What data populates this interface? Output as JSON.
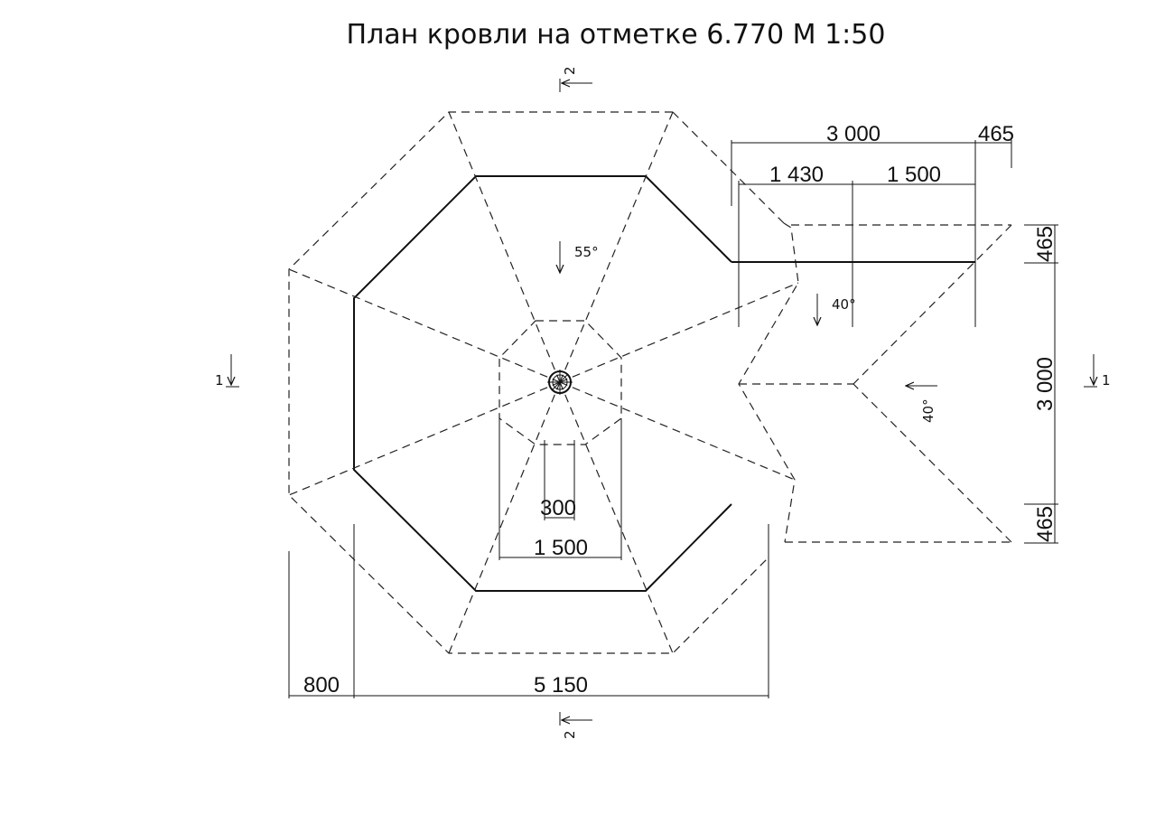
{
  "title": "План кровли  на отметке 6.770 М 1:50",
  "dimensions": {
    "top_total": "3 000",
    "top_right": "465",
    "top_sub_left": "1 430",
    "top_sub_right": "1 500",
    "right_top": "465",
    "right_mid": "3 000",
    "right_bottom": "465",
    "bottom_left": "800",
    "bottom_main": "5 150",
    "inner_width": "1 500",
    "inner_small": "300"
  },
  "slopes": {
    "main": "55°",
    "wing_upper": "40°",
    "wing_right": "40°"
  },
  "section_marks": {
    "left": "1",
    "right": "1",
    "top": "2",
    "bottom": "2"
  }
}
